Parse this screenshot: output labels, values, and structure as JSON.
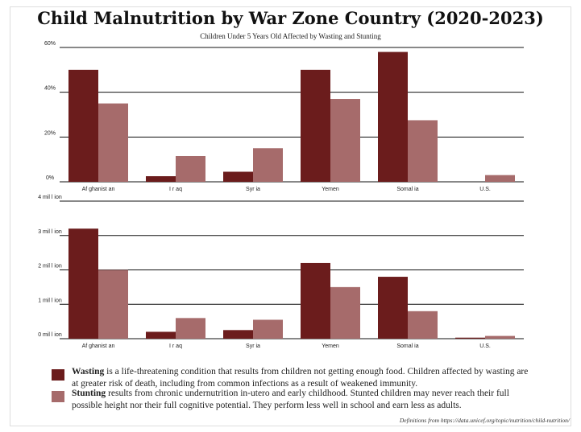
{
  "title": "Child Malnutrition by War Zone Country (2020-2023)",
  "subtitle": "Children Under 5 Years Old Affected by Wasting and Stunting",
  "colors": {
    "wasting": "#6b1c1c",
    "stunting": "#a66b6b",
    "grid": "#111111"
  },
  "chart_data": [
    {
      "type": "bar",
      "categories": [
        "Afghanistan",
        "Iraq",
        "Syria",
        "Yemen",
        "Somalia",
        "U.S."
      ],
      "category_labels": [
        "Af ghanist an",
        "I r aq",
        "Syr ia",
        "Yemen",
        "Somal ia",
        "U.S."
      ],
      "series": [
        {
          "name": "Wasting",
          "values": [
            50,
            2.5,
            4.5,
            50,
            58,
            0
          ]
        },
        {
          "name": "Stunting",
          "values": [
            35,
            11.5,
            15,
            37,
            27.5,
            3
          ]
        }
      ],
      "ylim": [
        0,
        60
      ],
      "yticks": [
        0,
        20,
        40,
        60
      ],
      "ytick_labels": [
        "0%",
        "20%",
        "40%",
        "60%"
      ],
      "grid": true,
      "legend": "bottom"
    },
    {
      "type": "bar",
      "categories": [
        "Afghanistan",
        "Iraq",
        "Syria",
        "Yemen",
        "Somalia",
        "U.S."
      ],
      "category_labels": [
        "Af ghanist an",
        "I r aq",
        "Syr ia",
        "Yemen",
        "Somal ia",
        "U.S."
      ],
      "series": [
        {
          "name": "Wasting",
          "values": [
            3.2,
            0.2,
            0.25,
            2.2,
            1.8,
            0.03
          ]
        },
        {
          "name": "Stunting",
          "values": [
            2.0,
            0.6,
            0.55,
            1.5,
            0.8,
            0.08
          ]
        }
      ],
      "ylim": [
        0,
        4
      ],
      "yticks": [
        0,
        1,
        2,
        3,
        4
      ],
      "ytick_labels": [
        "0 mil l ion",
        "1 mil l ion",
        "2 mil l ion",
        "3 mil l ion",
        "4 mil l ion"
      ],
      "grid": true,
      "legend": "bottom"
    }
  ],
  "legend": {
    "wasting": {
      "term": "Wasting",
      "text": " is a life-threatening condition that results from children not getting enough food. Children affected by wasting are at greater risk of death, including from common infections as a result of weakened immunity."
    },
    "stunting": {
      "term": "Stunting",
      "text": " results from chronic undernutrition in-utero and early childhood. Stunted children may never reach their full possible height nor their full cognitive potential. They perform less well in school and earn less as adults."
    }
  },
  "source": "Definitions from https://data.unicef.org/topic/nutrition/child-nutrition/"
}
